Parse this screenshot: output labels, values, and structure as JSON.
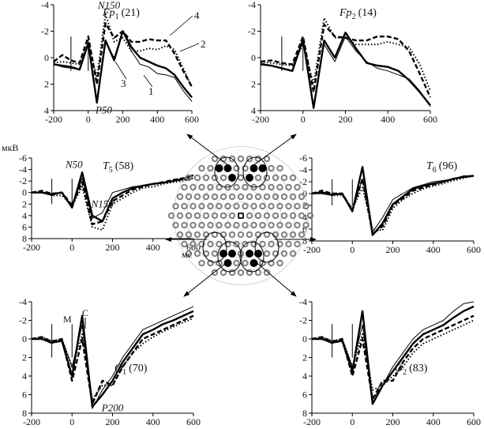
{
  "units": {
    "y": "мкВ",
    "x": "мс"
  },
  "markers": {
    "m": "M",
    "c": "C"
  },
  "legend_numbers": [
    "1",
    "2",
    "3",
    "4"
  ],
  "series_styles": {
    "1": "thin solid",
    "2": "dotted",
    "3": "thick solid",
    "4": "dashed"
  },
  "head_map": {
    "highlight_color": "#000000",
    "electrode_color": "#808080",
    "grid_color": "#c8c8c8"
  },
  "chart_data": [
    {
      "type": "line",
      "id": "fp1",
      "title_main": "Fp",
      "title_sub": "1",
      "title_count": "(21)",
      "xlim": [
        -200,
        600
      ],
      "ylim": [
        -4,
        4
      ],
      "xticks": [
        -200,
        0,
        200,
        400,
        600
      ],
      "yticks": [
        -4,
        -2,
        0,
        2,
        4
      ],
      "inverted_y": true,
      "annotations": [
        {
          "text": "N150",
          "x": 120,
          "y": -3.7
        },
        {
          "text": "P50",
          "x": 90,
          "y": 4.2
        }
      ],
      "x": [
        -200,
        -150,
        -100,
        -50,
        0,
        50,
        100,
        150,
        200,
        250,
        300,
        350,
        400,
        450,
        500,
        550,
        600
      ],
      "series": [
        {
          "name": "1",
          "values": [
            0.5,
            0.7,
            0.8,
            0.9,
            -1.2,
            3.4,
            -1.2,
            0,
            -2,
            -0.5,
            0.5,
            0.7,
            1.2,
            1.3,
            1.5,
            2.5,
            3.3
          ]
        },
        {
          "name": "2",
          "values": [
            0.4,
            0.3,
            0.4,
            0.5,
            -1.1,
            1.5,
            -3.3,
            -1.2,
            -1.5,
            -0.5,
            -0.5,
            -0.7,
            -0.6,
            -0.9,
            -0.6,
            0.8,
            2.2
          ]
        },
        {
          "name": "3",
          "values": [
            0.5,
            0.6,
            0.7,
            0.9,
            -1.1,
            3.4,
            -1.3,
            0.2,
            -2,
            -0.8,
            0,
            0.3,
            0.6,
            0.8,
            1.3,
            2.2,
            3
          ]
        },
        {
          "name": "4",
          "values": [
            0.3,
            -0.2,
            0.2,
            0.4,
            -1.6,
            2,
            -2.6,
            -1.5,
            -2,
            -1.2,
            -1.2,
            -1.4,
            -1.3,
            -1.3,
            -0.3,
            1,
            2.2
          ]
        }
      ]
    },
    {
      "type": "line",
      "id": "fp2",
      "title_main": "Fp",
      "title_sub": "2",
      "title_count": "(14)",
      "xlim": [
        -200,
        600
      ],
      "ylim": [
        -4,
        4
      ],
      "xticks": [
        -200,
        0,
        200,
        400,
        600
      ],
      "yticks": [
        -4,
        -2,
        0,
        2,
        4
      ],
      "inverted_y": true,
      "annotations": [],
      "x": [
        -200,
        -150,
        -100,
        -50,
        0,
        50,
        100,
        150,
        200,
        250,
        300,
        350,
        400,
        450,
        500,
        550,
        600
      ],
      "series": [
        {
          "name": "1",
          "values": [
            0.4,
            0.6,
            0.8,
            1,
            -1.2,
            3.6,
            -1,
            0.3,
            -1.6,
            -0.5,
            0.3,
            0.8,
            1,
            1.3,
            1.6,
            2.5,
            3.7
          ]
        },
        {
          "name": "2",
          "values": [
            0.3,
            0.4,
            0.5,
            0.6,
            -1,
            2,
            -3,
            -1.5,
            -1.5,
            -1,
            -1,
            -1,
            -1.2,
            -1,
            -0.8,
            0.5,
            2.5
          ]
        },
        {
          "name": "3",
          "values": [
            0.5,
            0.6,
            0.8,
            1,
            -1.4,
            3.8,
            -1.3,
            0,
            -1.9,
            -0.7,
            0.4,
            0.6,
            0.7,
            1,
            1.7,
            2.6,
            3.6
          ]
        },
        {
          "name": "4",
          "values": [
            0.3,
            0.2,
            0.4,
            0.5,
            -1.6,
            2.6,
            -2.5,
            -1.6,
            -1.5,
            -1.3,
            -1.3,
            -1.6,
            -1.6,
            -1.4,
            -0.5,
            1.2,
            3
          ]
        }
      ]
    },
    {
      "type": "line",
      "id": "t5",
      "title_main": "T",
      "title_sub": "5",
      "title_count": "(58)",
      "xlim": [
        -200,
        600
      ],
      "ylim": [
        -6,
        8
      ],
      "xticks": [
        -200,
        0,
        200,
        400,
        600
      ],
      "yticks": [
        -6,
        -4,
        -2,
        0,
        2,
        4,
        6,
        8
      ],
      "inverted_y": true,
      "annotations": [
        {
          "text": "N50",
          "x": 10,
          "y": -4.3
        },
        {
          "text": "N150",
          "x": 150,
          "y": 2.6
        }
      ],
      "x": [
        -200,
        -150,
        -100,
        -50,
        0,
        50,
        100,
        150,
        200,
        250,
        300,
        350,
        400,
        450,
        500,
        550,
        600
      ],
      "series": [
        {
          "name": "1",
          "values": [
            0,
            0,
            0.5,
            0,
            2.5,
            -2.5,
            4.5,
            3.5,
            0,
            -0.5,
            -1,
            -1.2,
            -1.5,
            -1.7,
            -2,
            -2.2,
            -2.5
          ]
        },
        {
          "name": "2",
          "values": [
            0,
            0,
            0.5,
            0.5,
            2.3,
            -1,
            6,
            6.5,
            2,
            1,
            0,
            -0.8,
            -1,
            -1.5,
            -1.8,
            -2,
            -2.5
          ]
        },
        {
          "name": "3",
          "values": [
            0,
            0,
            0.3,
            0,
            2.6,
            -3.5,
            4,
            5,
            1,
            0,
            -0.8,
            -1.2,
            -1.5,
            -1.7,
            -2,
            -2.4,
            -3
          ]
        },
        {
          "name": "4",
          "values": [
            0,
            -0.3,
            0.2,
            0,
            2.2,
            -1.8,
            5.5,
            5,
            1.5,
            0.5,
            -0.5,
            -1,
            -1.5,
            -1.8,
            -2.2,
            -2.5,
            -3
          ]
        }
      ]
    },
    {
      "type": "line",
      "id": "t6",
      "title_main": "T",
      "title_sub": "6",
      "title_count": "(96)",
      "xlim": [
        -200,
        600
      ],
      "ylim": [
        -6,
        8
      ],
      "xticks": [
        -200,
        0,
        200,
        400,
        600
      ],
      "yticks": [
        -6,
        -4,
        -2,
        0,
        2,
        4,
        6,
        8
      ],
      "inverted_y": true,
      "annotations": [],
      "x": [
        -200,
        -150,
        -100,
        -50,
        0,
        50,
        100,
        150,
        200,
        250,
        300,
        350,
        400,
        450,
        500,
        550,
        600
      ],
      "series": [
        {
          "name": "1",
          "values": [
            0,
            0,
            0.3,
            0,
            2.8,
            -2.5,
            6.5,
            4,
            1,
            0,
            -1,
            -1.5,
            -2,
            -2.2,
            -2.5,
            -3,
            -3
          ]
        },
        {
          "name": "2",
          "values": [
            0,
            0,
            0.3,
            0.3,
            2.5,
            -1,
            6,
            6.2,
            2.5,
            1,
            0,
            -0.8,
            -1.3,
            -1.7,
            -2.2,
            -2.6,
            -3
          ]
        },
        {
          "name": "3",
          "values": [
            0,
            -0.2,
            0.2,
            0,
            3,
            -4.5,
            7,
            5,
            1.8,
            0.5,
            -0.8,
            -1.3,
            -1.7,
            -2,
            -2.5,
            -2.8,
            -3
          ]
        },
        {
          "name": "4",
          "values": [
            0,
            -0.5,
            0,
            0,
            2.8,
            -2.5,
            6.8,
            5.5,
            2,
            0.8,
            -0.5,
            -1,
            -1.5,
            -2,
            -2.5,
            -2.8,
            -3
          ]
        }
      ]
    },
    {
      "type": "line",
      "id": "o1",
      "title_main": "O",
      "title_sub": "1",
      "title_count": "(70)",
      "xlim": [
        -200,
        600
      ],
      "ylim": [
        -4,
        8
      ],
      "xticks": [
        -200,
        0,
        200,
        400,
        600
      ],
      "yticks": [
        -4,
        -2,
        0,
        2,
        4,
        6,
        8
      ],
      "inverted_y": true,
      "annotations": [
        {
          "text": "P200",
          "x": 200,
          "y": 7.8
        }
      ],
      "x": [
        -200,
        -150,
        -100,
        -50,
        0,
        50,
        100,
        150,
        200,
        250,
        300,
        350,
        400,
        450,
        500,
        550,
        600
      ],
      "series": [
        {
          "name": "1",
          "values": [
            0,
            0,
            0.5,
            0,
            3,
            -1.5,
            7.5,
            5.5,
            4,
            2,
            0.5,
            -1,
            -1.5,
            -2,
            -2.5,
            -3,
            -3.5
          ]
        },
        {
          "name": "2",
          "values": [
            0,
            -0.2,
            0.2,
            0,
            3,
            -0.5,
            6.5,
            5,
            5,
            3,
            1.5,
            0.5,
            -0.2,
            -0.8,
            -1.3,
            -1.8,
            -2.2
          ]
        },
        {
          "name": "3",
          "values": [
            0,
            0,
            0.4,
            0.2,
            4,
            -2.5,
            7.3,
            6,
            4.5,
            2.5,
            1,
            -0.5,
            -1,
            -1.6,
            -2,
            -2.5,
            -3
          ]
        },
        {
          "name": "4",
          "values": [
            0,
            -0.2,
            0.3,
            0,
            4.5,
            0,
            7,
            4.5,
            5,
            3,
            1.5,
            0,
            -0.5,
            -1,
            -1.5,
            -2,
            -2.5
          ]
        }
      ]
    },
    {
      "type": "line",
      "id": "o2",
      "title_main": "O",
      "title_sub": "2",
      "title_count": "(83)",
      "xlim": [
        -200,
        600
      ],
      "ylim": [
        -4,
        8
      ],
      "xticks": [
        -200,
        0,
        200,
        400,
        600
      ],
      "yticks": [
        -4,
        -2,
        0,
        2,
        4,
        6,
        8
      ],
      "inverted_y": true,
      "annotations": [],
      "x": [
        -200,
        -150,
        -100,
        -50,
        0,
        50,
        100,
        150,
        200,
        250,
        300,
        350,
        400,
        450,
        500,
        550,
        600
      ],
      "series": [
        {
          "name": "1",
          "values": [
            0,
            0,
            0.5,
            0,
            3,
            -1.5,
            6.5,
            5,
            3,
            1.5,
            0,
            -1,
            -1.5,
            -2,
            -3,
            -3.8,
            -4
          ]
        },
        {
          "name": "2",
          "values": [
            0,
            -0.2,
            0.2,
            0,
            3,
            -0.5,
            5.5,
            5,
            4,
            3,
            1.5,
            0.5,
            0,
            -0.5,
            -1,
            -1.5,
            -2
          ]
        },
        {
          "name": "3",
          "values": [
            0,
            0,
            0.4,
            0.2,
            3.5,
            -3,
            7,
            5,
            3.5,
            2,
            0.5,
            -0.5,
            -1,
            -1.5,
            -2.3,
            -3,
            -3.5
          ]
        },
        {
          "name": "4",
          "values": [
            0,
            -0.2,
            0.3,
            0,
            4,
            0,
            6.5,
            4.5,
            4.5,
            2.5,
            1,
            0,
            -0.5,
            -1,
            -1.5,
            -2,
            -2.5
          ]
        }
      ]
    }
  ]
}
